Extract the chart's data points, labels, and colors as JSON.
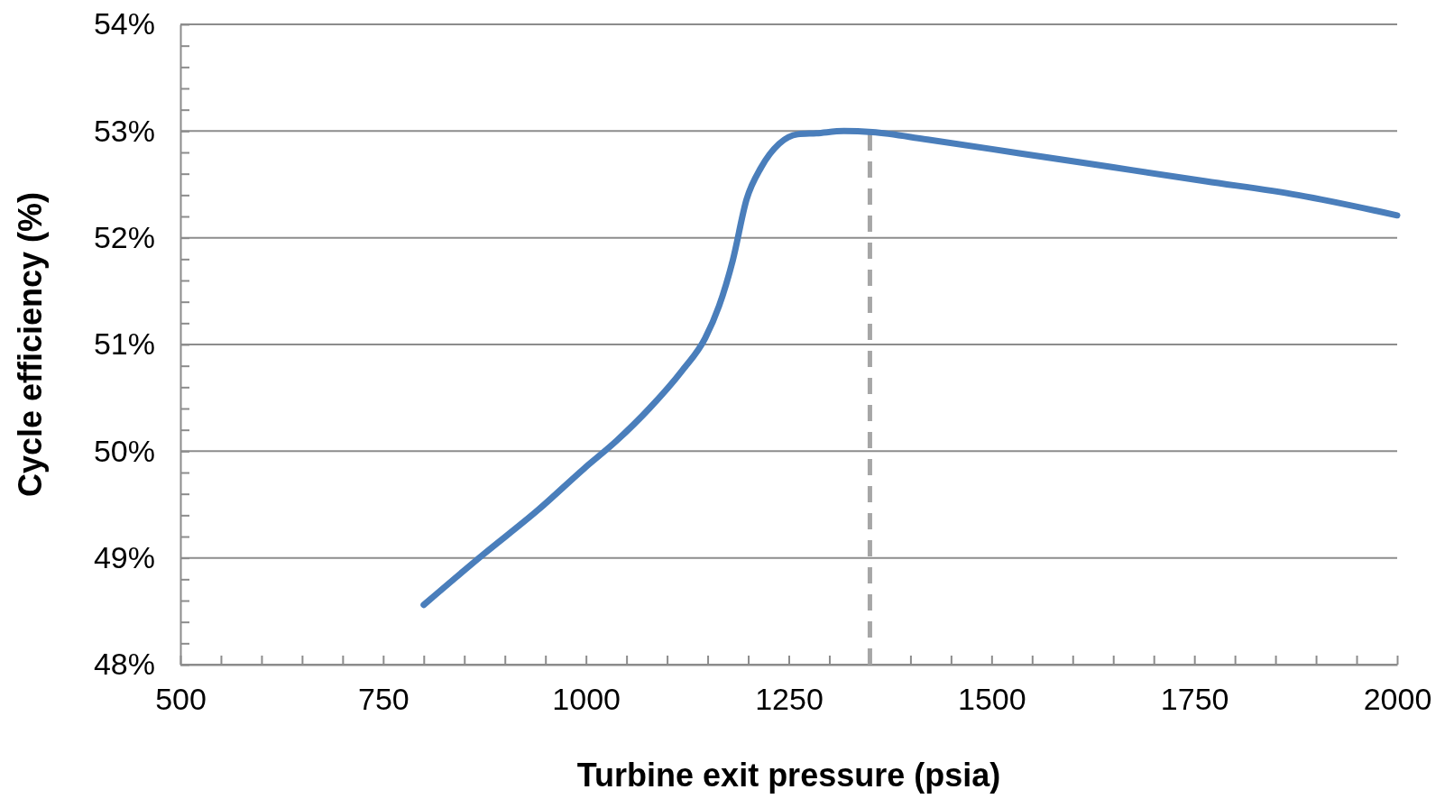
{
  "chart_data": {
    "type": "line",
    "xlabel": "Turbine exit pressure  (psia)",
    "ylabel": "Cycle efficiency  (%)",
    "x": [
      800,
      873,
      941,
      998,
      1038,
      1078,
      1118,
      1147,
      1164,
      1181,
      1198,
      1216,
      1238,
      1261,
      1284,
      1318,
      1353,
      1421,
      1536,
      1650,
      1764,
      1878,
      2000
    ],
    "series": [
      {
        "color": "#4a7ebb",
        "values": [
          48.56,
          49.03,
          49.45,
          49.84,
          50.1,
          50.4,
          50.75,
          51.06,
          51.36,
          51.79,
          52.36,
          52.66,
          52.88,
          52.97,
          52.98,
          53.0,
          52.99,
          52.92,
          52.79,
          52.66,
          52.53,
          52.4,
          52.21
        ]
      }
    ],
    "xlim": [
      500,
      2000
    ],
    "xticks": [
      500,
      {
        "value": 550,
        "label": null
      },
      {
        "value": 600,
        "label": null
      },
      {
        "value": 650,
        "label": null
      },
      {
        "value": 700,
        "label": null
      },
      750,
      {
        "value": 800,
        "label": null
      },
      {
        "value": 850,
        "label": null
      },
      {
        "value": 900,
        "label": null
      },
      {
        "value": 950,
        "label": null
      },
      1000,
      {
        "value": 1050,
        "label": null
      },
      {
        "value": 1100,
        "label": null
      },
      {
        "value": 1150,
        "label": null
      },
      {
        "value": 1200,
        "label": null
      },
      1250,
      {
        "value": 1300,
        "label": null
      },
      {
        "value": 1350,
        "label": null
      },
      {
        "value": 1400,
        "label": null
      },
      {
        "value": 1450,
        "label": null
      },
      1500,
      {
        "value": 1550,
        "label": null
      },
      {
        "value": 1600,
        "label": null
      },
      {
        "value": 1650,
        "label": null
      },
      {
        "value": 1700,
        "label": null
      },
      1750,
      {
        "value": 1800,
        "label": null
      },
      {
        "value": 1850,
        "label": null
      },
      {
        "value": 1900,
        "label": null
      },
      {
        "value": 1950,
        "label": null
      },
      2000
    ],
    "ylim": [
      48,
      54
    ],
    "yticks": [
      {
        "value": 48,
        "label": "48%"
      },
      {
        "value": 48.2,
        "label": null
      },
      {
        "value": 48.4,
        "label": null
      },
      {
        "value": 48.6,
        "label": null
      },
      {
        "value": 48.8,
        "label": null
      },
      {
        "value": 49,
        "label": "49%"
      },
      {
        "value": 49.2,
        "label": null
      },
      {
        "value": 49.4,
        "label": null
      },
      {
        "value": 49.6,
        "label": null
      },
      {
        "value": 49.8,
        "label": null
      },
      {
        "value": 50,
        "label": "50%"
      },
      {
        "value": 50.2,
        "label": null
      },
      {
        "value": 50.4,
        "label": null
      },
      {
        "value": 50.6,
        "label": null
      },
      {
        "value": 50.8,
        "label": null
      },
      {
        "value": 51,
        "label": "51%"
      },
      {
        "value": 51.2,
        "label": null
      },
      {
        "value": 51.4,
        "label": null
      },
      {
        "value": 51.6,
        "label": null
      },
      {
        "value": 51.8,
        "label": null
      },
      {
        "value": 52,
        "label": "52%"
      },
      {
        "value": 52.2,
        "label": null
      },
      {
        "value": 52.4,
        "label": null
      },
      {
        "value": 52.6,
        "label": null
      },
      {
        "value": 52.8,
        "label": null
      },
      {
        "value": 53,
        "label": "53%"
      },
      {
        "value": 53.2,
        "label": null
      },
      {
        "value": 53.4,
        "label": null
      },
      {
        "value": 53.6,
        "label": null
      },
      {
        "value": 53.8,
        "label": null
      },
      {
        "value": 54,
        "label": "54%"
      }
    ],
    "grid": "y",
    "ref_lines": [
      {
        "axis": "x",
        "value": 1350,
        "color": "#a6a6a6",
        "line_style": "dashed"
      }
    ]
  }
}
